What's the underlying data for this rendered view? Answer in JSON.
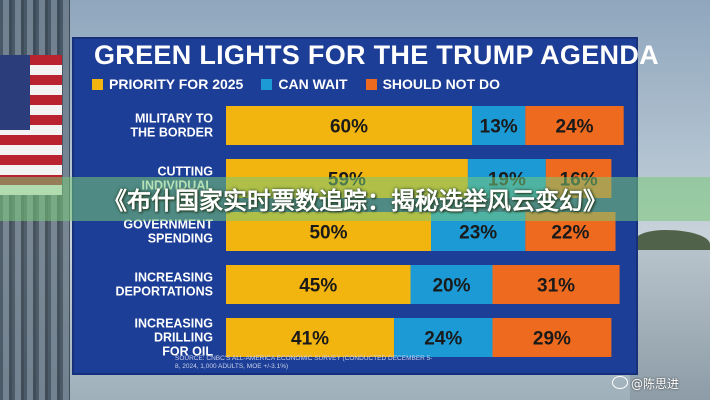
{
  "chart_data": {
    "type": "bar",
    "stacked": true,
    "orientation": "horizontal",
    "title": "GREEN LIGHTS FOR THE TRUMP AGENDA",
    "categories": [
      [
        "MILITARY TO",
        "THE BORDER"
      ],
      [
        "CUTTING",
        "INDIVIDUAL"
      ],
      [
        "GOVERNMENT",
        "SPENDING"
      ],
      [
        "INCREASING",
        "DEPORTATIONS"
      ],
      [
        "INCREASING",
        "DRILLING",
        "FOR OIL"
      ]
    ],
    "series": [
      {
        "name": "PRIORITY FOR 2025",
        "color": "#f2b40f",
        "values": [
          60,
          59,
          50,
          45,
          41
        ]
      },
      {
        "name": "CAN WAIT",
        "color": "#1b9ad6",
        "values": [
          13,
          19,
          23,
          20,
          24
        ]
      },
      {
        "name": "SHOULD NOT DO",
        "color": "#ee6a1f",
        "values": [
          24,
          16,
          22,
          31,
          29
        ]
      }
    ],
    "value_suffix": "%",
    "xlim": [
      0,
      100
    ],
    "legend_position": "top",
    "grid": false,
    "source": "SOURCE: CNBC'S ALL-AMERICA ECONOMIC SURVEY (CONDUCTED DECEMBER 5-8, 2024, 1,000 ADULTS, MOE +/-3.1%)"
  },
  "overlay": {
    "banner": "《布什国家实时票数追踪：揭秘选举风云变幻》",
    "watermark": "@陈思进"
  },
  "colors": {
    "panel": "#1d3e96",
    "text": "#ffffff"
  }
}
